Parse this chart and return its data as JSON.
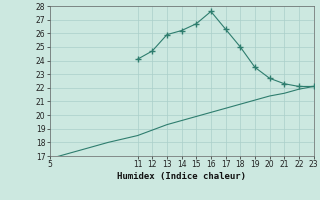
{
  "xlabel": "Humidex (Indice chaleur)",
  "x_upper": [
    11,
    12,
    13,
    14,
    15,
    16,
    17,
    18,
    19,
    20,
    21,
    22,
    23
  ],
  "y_upper": [
    24.1,
    24.7,
    25.9,
    26.2,
    26.7,
    27.6,
    26.3,
    25.0,
    23.5,
    22.7,
    22.3,
    22.1,
    22.1
  ],
  "x_lower": [
    5,
    6,
    7,
    8,
    9,
    10,
    11,
    12,
    13,
    14,
    15,
    16,
    17,
    18,
    19,
    20,
    21,
    22,
    23
  ],
  "y_lower": [
    16.8,
    17.1,
    17.4,
    17.7,
    18.0,
    18.25,
    18.5,
    18.9,
    19.3,
    19.6,
    19.9,
    20.2,
    20.5,
    20.8,
    21.1,
    21.4,
    21.6,
    21.9,
    22.1
  ],
  "line_color": "#2e7d6e",
  "bg_color": "#cce8e0",
  "grid_color_major": "#aacfca",
  "grid_color_minor": "#c2ddd8",
  "xlim": [
    5,
    23
  ],
  "ylim": [
    17,
    28
  ],
  "xticks": [
    5,
    11,
    12,
    13,
    14,
    15,
    16,
    17,
    18,
    19,
    20,
    21,
    22,
    23
  ],
  "yticks": [
    17,
    18,
    19,
    20,
    21,
    22,
    23,
    24,
    25,
    26,
    27,
    28
  ]
}
